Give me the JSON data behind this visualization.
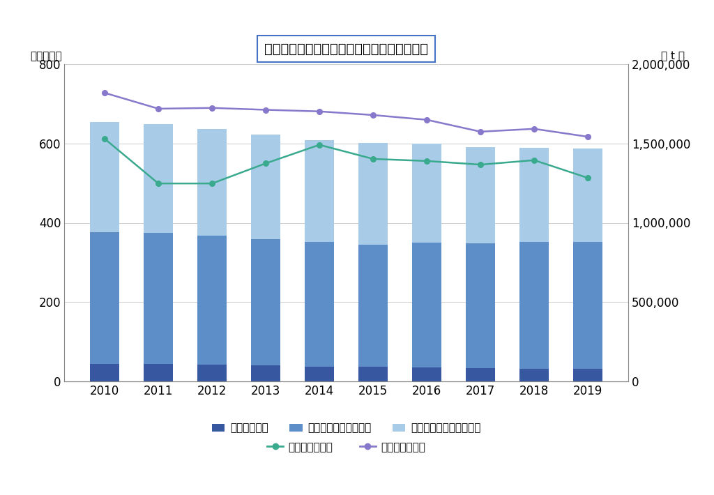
{
  "years": [
    2010,
    2011,
    2012,
    2013,
    2014,
    2015,
    2016,
    2017,
    2018,
    2019
  ],
  "central_market": [
    44,
    43,
    42,
    40,
    37,
    36,
    35,
    33,
    32,
    32
  ],
  "local_market_sanchi": [
    333,
    332,
    325,
    318,
    315,
    308,
    315,
    315,
    320,
    320
  ],
  "local_market_shohi": [
    277,
    274,
    269,
    264,
    257,
    257,
    250,
    243,
    238,
    235
  ],
  "fresh_right": [
    1530000,
    1248000,
    1248000,
    1375000,
    1492000,
    1403000,
    1390000,
    1367000,
    1395000,
    1283000
  ],
  "suisan_right": [
    1820000,
    1720000,
    1725000,
    1713000,
    1703000,
    1680000,
    1650000,
    1575000,
    1593000,
    1543000
  ],
  "bar_color_central": "#3757a0",
  "bar_color_sanchi": "#5e8ec8",
  "bar_color_shohi": "#a8cce8",
  "line_color_fresh": "#3aaa8e",
  "line_color_suisan": "#8878cc",
  "title": "卸売市場市場と水産食用加工品生産量の推移",
  "ylabel_left": "（市場数）",
  "ylabel_right": "（ t ）",
  "ylim_left": [
    0,
    800
  ],
  "ylim_right": [
    0,
    2000000
  ],
  "yticks_left": [
    0,
    200,
    400,
    600,
    800
  ],
  "yticks_right": [
    0,
    500000,
    1000000,
    1500000,
    2000000
  ],
  "legend_central": "中央卸売市場",
  "legend_sanchi": "地方卸売市場（産地）",
  "legend_shohi": "地方卸売市場（消費地）",
  "legend_fresh": "生鮮冷凍水産物",
  "legend_suisan": "水産食用加工品"
}
